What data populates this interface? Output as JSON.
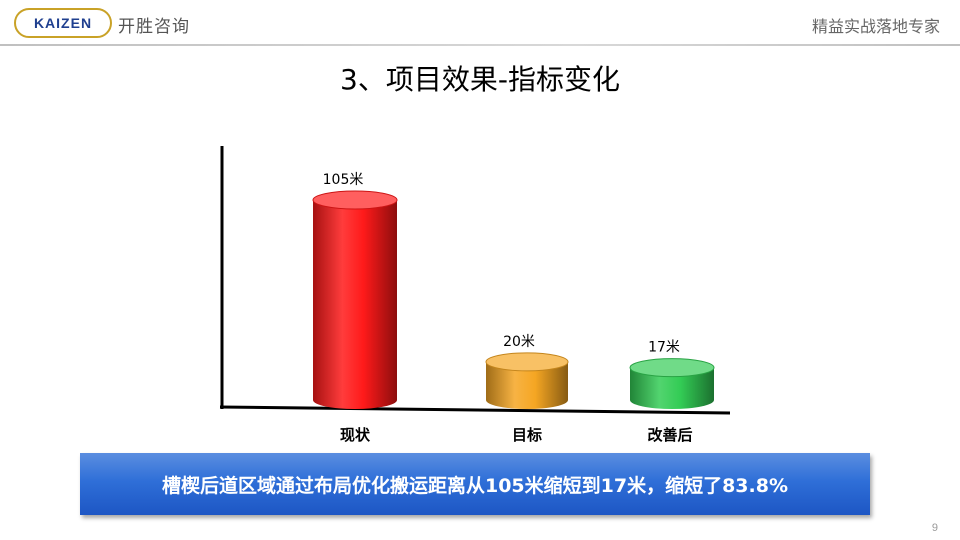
{
  "header": {
    "logo_en": "KAIZEN",
    "logo_cn": "开胜咨询",
    "slogan": "精益实战落地专家"
  },
  "slide": {
    "title": "3、项目效果-指标变化",
    "summary": "槽楔后道区域通过布局优化搬运距离从105米缩短到17米，缩短了83.8%",
    "page_number": "9"
  },
  "chart_data": {
    "type": "bar",
    "categories": [
      "现状",
      "目标",
      "改善后"
    ],
    "values": [
      105,
      20,
      17
    ],
    "data_labels": [
      "105米",
      "20米",
      "17米"
    ],
    "colors": [
      "#ff1a1a",
      "#f5a623",
      "#33cc55"
    ],
    "title": "",
    "xlabel": "",
    "ylabel": "",
    "grid": false
  }
}
